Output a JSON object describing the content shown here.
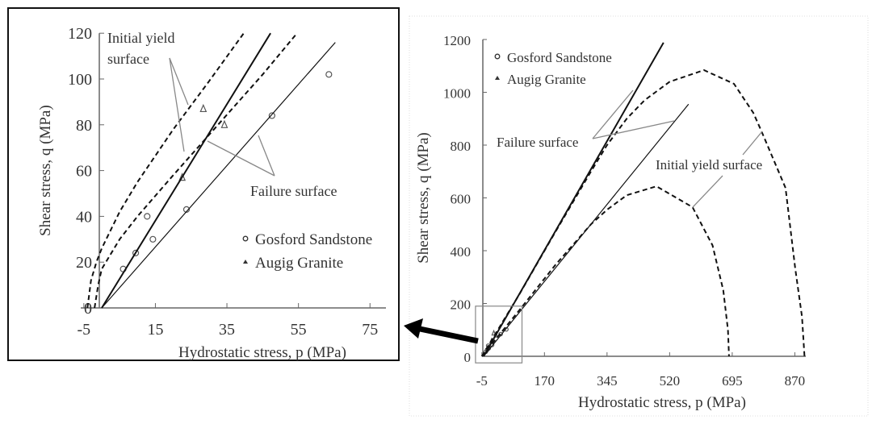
{
  "chart_data": [
    {
      "type": "line",
      "panel": "zoomed-inset",
      "xlabel": "Hydrostatic stress, p (MPa)",
      "ylabel": "Shear stress, q (MPa)",
      "xlim": [
        -5,
        80
      ],
      "ylim": [
        0,
        120
      ],
      "xticks": [
        -5,
        15,
        35,
        55,
        75
      ],
      "yticks": [
        0,
        20,
        40,
        60,
        80,
        100,
        120
      ],
      "legend": {
        "position": "bottom-right",
        "entries": [
          {
            "label": "Gosford Sandstone",
            "marker": "circle"
          },
          {
            "label": "Augig Granite",
            "marker": "triangle"
          }
        ]
      },
      "series": [
        {
          "name": "Gosford Sandstone",
          "kind": "scatter",
          "marker": "circle",
          "points": [
            [
              6,
              17
            ],
            [
              9.5,
              24
            ],
            [
              12.7,
              40
            ],
            [
              14.3,
              30
            ],
            [
              23.7,
              43
            ],
            [
              47.6,
              84
            ],
            [
              63.5,
              102
            ]
          ]
        },
        {
          "name": "Augig Granite",
          "kind": "scatter",
          "marker": "triangle",
          "points": [
            [
              22.5,
              57
            ],
            [
              28.4,
              87
            ],
            [
              34.3,
              80
            ]
          ]
        },
        {
          "name": "Failure surface (Augig Granite)",
          "kind": "line",
          "style": "solid-bold",
          "points": [
            [
              0,
              0
            ],
            [
              47.2,
              120
            ]
          ]
        },
        {
          "name": "Failure surface (Gosford Sandstone)",
          "kind": "line",
          "style": "solid",
          "points": [
            [
              0,
              0
            ],
            [
              65.3,
              116
            ]
          ]
        },
        {
          "name": "Initial yield surface (Augig Granite)",
          "kind": "line",
          "style": "dashed",
          "points": [
            [
              -4,
              0
            ],
            [
              -3,
              12
            ],
            [
              -1.5,
              20
            ],
            [
              0,
              26
            ],
            [
              5,
              42
            ],
            [
              10,
              55
            ],
            [
              20,
              78
            ],
            [
              30,
              99
            ],
            [
              39.7,
              120
            ]
          ]
        },
        {
          "name": "Initial yield surface (Gosford Sandstone)",
          "kind": "line",
          "style": "dashed",
          "points": [
            [
              -2,
              0
            ],
            [
              -1,
              10
            ],
            [
              0,
              17
            ],
            [
              5,
              30
            ],
            [
              10,
              40
            ],
            [
              20,
              58
            ],
            [
              32.5,
              80
            ],
            [
              45,
              102
            ],
            [
              54.6,
              120
            ]
          ]
        }
      ],
      "annotations": [
        {
          "lines": [
            "Initial yield",
            "surface"
          ],
          "points_to": "Initial yield surface"
        },
        {
          "lines": [
            "Failure surface"
          ],
          "points_to": "Failure surface"
        }
      ]
    },
    {
      "type": "line",
      "panel": "full-range",
      "xlabel": "Hydrostatic stress, p (MPa)",
      "ylabel": "Shear stress, q (MPa)",
      "xlim": [
        -5,
        900
      ],
      "ylim": [
        0,
        1200
      ],
      "xticks": [
        -5,
        170,
        345,
        520,
        695,
        870
      ],
      "yticks": [
        0,
        200,
        400,
        600,
        800,
        1000,
        1200
      ],
      "legend": {
        "position": "top-left",
        "entries": [
          {
            "label": "Gosford Sandstone",
            "marker": "circle"
          },
          {
            "label": "Augig Granite",
            "marker": "triangle"
          }
        ]
      },
      "series": [
        {
          "name": "Gosford Sandstone",
          "kind": "scatter",
          "marker": "circle",
          "points": [
            [
              6,
              17
            ],
            [
              9.5,
              24
            ],
            [
              12.7,
              40
            ],
            [
              14.3,
              30
            ],
            [
              23.7,
              43
            ],
            [
              47.6,
              84
            ],
            [
              63.5,
              102
            ]
          ]
        },
        {
          "name": "Augig Granite",
          "kind": "scatter",
          "marker": "triangle",
          "points": [
            [
              22.5,
              57
            ],
            [
              28.4,
              87
            ],
            [
              34.3,
              80
            ]
          ]
        },
        {
          "name": "Failure surface (Augig Granite)",
          "kind": "line",
          "style": "solid-bold",
          "points": [
            [
              0,
              0
            ],
            [
              503,
              1188
            ]
          ]
        },
        {
          "name": "Failure surface (Gosford Sandstone)",
          "kind": "line",
          "style": "solid",
          "points": [
            [
              0,
              0
            ],
            [
              573,
              955
            ]
          ]
        },
        {
          "name": "Initial yield surface (Augig Granite)",
          "kind": "line",
          "style": "dashed",
          "points": [
            [
              -5,
              0
            ],
            [
              100,
              235
            ],
            [
              200,
              470
            ],
            [
              300,
              700
            ],
            [
              345,
              800
            ],
            [
              400,
              900
            ],
            [
              450,
              970
            ],
            [
              520,
              1040
            ],
            [
              616,
              1084
            ],
            [
              700,
              1032
            ],
            [
              754,
              922
            ],
            [
              777,
              852
            ],
            [
              844,
              638
            ],
            [
              871,
              333
            ],
            [
              890,
              150
            ],
            [
              897,
              0
            ]
          ]
        },
        {
          "name": "Initial yield surface (Gosford Sandstone)",
          "kind": "line",
          "style": "dashed",
          "points": [
            [
              -5,
              0
            ],
            [
              100,
              175
            ],
            [
              200,
              345
            ],
            [
              300,
              500
            ],
            [
              345,
              555
            ],
            [
              400,
              610
            ],
            [
              483,
              644
            ],
            [
              584,
              565
            ],
            [
              640,
              420
            ],
            [
              670,
              250
            ],
            [
              683,
              100
            ],
            [
              686,
              0
            ]
          ]
        }
      ],
      "annotations": [
        {
          "lines": [
            "Failure surface"
          ],
          "points_to": "Failure surface"
        },
        {
          "lines": [
            "Initial yield surface"
          ],
          "points_to": "Initial yield surface"
        }
      ],
      "zoom_region": {
        "xlim": [
          -25,
          105
        ],
        "ylim": [
          -25,
          190
        ]
      }
    }
  ]
}
